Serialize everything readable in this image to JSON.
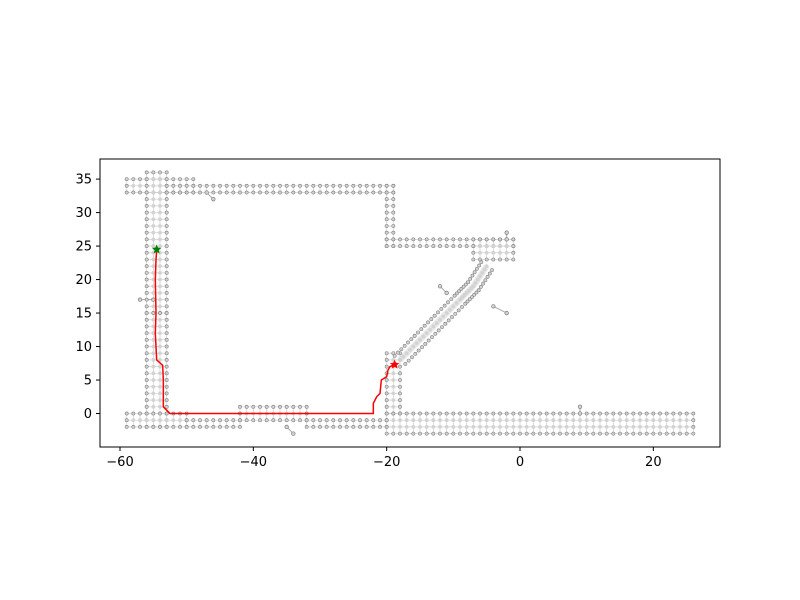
{
  "chart_data": {
    "type": "scatter",
    "title": "",
    "xlabel": "",
    "ylabel": "",
    "xlim": [
      -63,
      30
    ],
    "ylim": [
      -5,
      38
    ],
    "xticks": [
      -60,
      -40,
      -20,
      0,
      20
    ],
    "yticks": [
      0,
      5,
      10,
      15,
      20,
      25,
      30,
      35
    ],
    "grid": false,
    "legend": "none",
    "colors": {
      "node_fill": "#d3d3d3",
      "node_edge": "#7f7f7f",
      "edge": "#cfcfcf",
      "path": "#ff0000",
      "start": "#008000",
      "goal": "#ff0000"
    },
    "graph_regions": [
      {
        "x": [
          -59,
          -49
        ],
        "y": [
          33,
          35
        ]
      },
      {
        "x": [
          -56,
          -53
        ],
        "y": [
          15,
          36
        ]
      },
      {
        "x": [
          -56,
          -53
        ],
        "y": [
          -2,
          15
        ]
      },
      {
        "x": [
          -53,
          -19
        ],
        "y": [
          33,
          34
        ]
      },
      {
        "x": [
          -20,
          -19
        ],
        "y": [
          25,
          34
        ]
      },
      {
        "x": [
          -20,
          -1
        ],
        "y": [
          25,
          26
        ]
      },
      {
        "x": [
          -7,
          -1
        ],
        "y": [
          23,
          26
        ]
      },
      {
        "x": [
          -59,
          -50
        ],
        "y": [
          -2,
          0
        ]
      },
      {
        "x": [
          -50,
          -42
        ],
        "y": [
          -2,
          -1
        ]
      },
      {
        "x": [
          -42,
          -32
        ],
        "y": [
          -1,
          1
        ]
      },
      {
        "x": [
          -32,
          -20
        ],
        "y": [
          -2,
          -1
        ]
      },
      {
        "x": [
          -20,
          26
        ],
        "y": [
          -3,
          0
        ]
      },
      {
        "x": [
          -20,
          -18
        ],
        "y": [
          0,
          9
        ]
      }
    ],
    "diagonal_corridor": {
      "x": [
        -18,
        -15,
        -12,
        -9,
        -7,
        -5
      ],
      "y": [
        8,
        11,
        14,
        17,
        19,
        22
      ]
    },
    "isolated_nodes": [
      {
        "x": [
          -57,
          -55
        ],
        "y": [
          17,
          17
        ]
      },
      {
        "x": [
          -47,
          -46
        ],
        "y": [
          33,
          32
        ]
      },
      {
        "x": [
          -12,
          -11
        ],
        "y": [
          19,
          18
        ]
      },
      {
        "x": [
          -4,
          -2
        ],
        "y": [
          16,
          15
        ]
      },
      {
        "x": [
          -2,
          -2
        ],
        "y": [
          27,
          26
        ]
      },
      {
        "x": [
          -35,
          -34
        ],
        "y": [
          -2,
          -3
        ]
      },
      {
        "x": [
          9,
          9
        ],
        "y": [
          0,
          1
        ]
      }
    ],
    "path": {
      "x": [
        -54.5,
        -54.6,
        -54.7,
        -54.6,
        -54.7,
        -54.6,
        -54.5,
        -53.6,
        -53.5,
        -53.5,
        -53.0,
        -52.5,
        -40,
        -30,
        -22,
        -22,
        -21.5,
        -21.0,
        -20.8,
        -20.0,
        -19.8,
        -19.5,
        -18.8
      ],
      "y": [
        24.3,
        23.0,
        20.0,
        15.0,
        12.0,
        10.0,
        8.0,
        7.2,
        5.0,
        1.0,
        0.5,
        0.0,
        0.0,
        0.0,
        0.0,
        1.5,
        2.5,
        3.0,
        5.0,
        5.5,
        6.5,
        7.0,
        7.3
      ]
    },
    "start": {
      "x": -54.5,
      "y": 24.5
    },
    "goal": {
      "x": -18.8,
      "y": 7.3
    }
  }
}
